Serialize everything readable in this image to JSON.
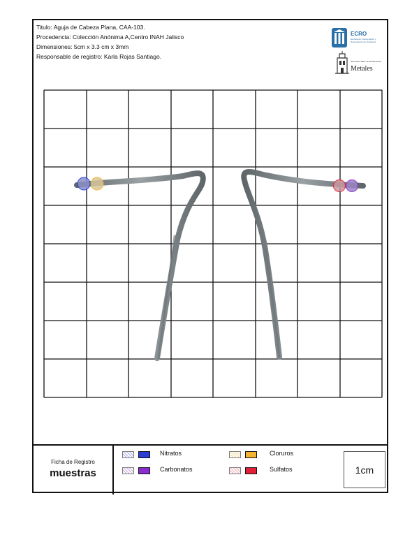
{
  "header": {
    "titulo": "Titulo: Aguja de Cabeza Plana, CAA-103.",
    "procedencia": "Procedencia: Colección Anónima A,Centro INAH Jalisco",
    "dimensiones": "Dimensiones: 5cm x 3.3 cm x 3mm",
    "responsable": "Responsable de registro: Karla Rojas Santiago."
  },
  "logos": {
    "ecro": "ECRO",
    "ecro_subtitle": "Escuela de Conservación y Restauración de Occidente",
    "metales_small": "Seminario Taller de Restauración",
    "metales": "Metales"
  },
  "grid": {
    "columns": 8,
    "rows": 8,
    "line_color": "#111111"
  },
  "colors": {
    "nitratos": "#2b3fd6",
    "carbonatos": "#8a2ccf",
    "cloruros": "#f2b431",
    "sulfatos": "#e2203a",
    "metal": "#7d8488"
  },
  "footer": {
    "ficha_title": "Ficha de Registro",
    "ficha_main": "muestras",
    "legend": {
      "nitratos": "Nitratos",
      "carbonatos": "Carbonatos",
      "cloruros": "Cloruros",
      "sulfatos": "Sulfatos"
    },
    "scale": "1cm"
  }
}
